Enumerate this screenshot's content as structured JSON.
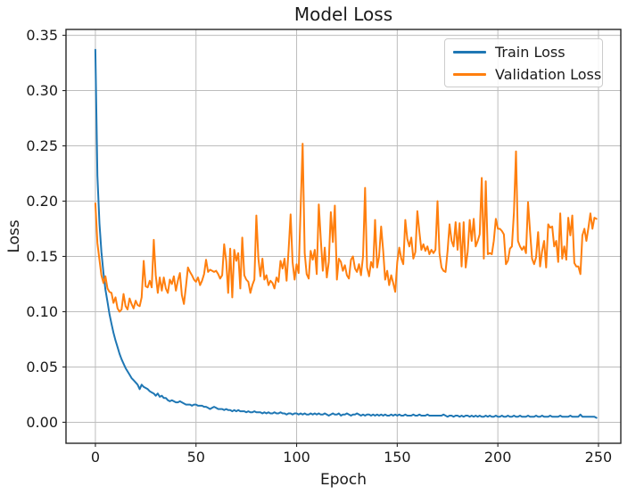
{
  "colors": {
    "background": "#ffffff",
    "grid": "#bdbdbd",
    "spine": "#262626",
    "tick_text": "#1a1a1a",
    "train": "#1f77b4",
    "validation": "#ff7f0e"
  },
  "chart_data": {
    "type": "line",
    "title": "Model Loss",
    "xlabel": "Epoch",
    "ylabel": "Loss",
    "grid": true,
    "legend_position": "upper right",
    "x_ticks": [
      0,
      50,
      100,
      150,
      200,
      250
    ],
    "y_ticks": [
      0.0,
      0.05,
      0.1,
      0.15,
      0.2,
      0.25,
      0.3,
      0.35
    ],
    "xlim": [
      -14.6,
      261.1
    ],
    "ylim": [
      -0.019,
      0.3553
    ],
    "x_start": 0,
    "x_step": 1,
    "series": [
      {
        "name": "Train Loss",
        "color": "#1f77b4",
        "values": [
          0.337,
          0.223,
          0.18,
          0.154,
          0.135,
          0.12,
          0.109,
          0.098,
          0.089,
          0.081,
          0.074,
          0.068,
          0.062,
          0.057,
          0.053,
          0.049,
          0.046,
          0.043,
          0.04,
          0.038,
          0.036,
          0.034,
          0.03,
          0.034,
          0.032,
          0.031,
          0.03,
          0.028,
          0.027,
          0.026,
          0.024,
          0.026,
          0.023,
          0.024,
          0.022,
          0.022,
          0.02,
          0.019,
          0.02,
          0.019,
          0.018,
          0.018,
          0.019,
          0.018,
          0.017,
          0.016,
          0.016,
          0.016,
          0.015,
          0.016,
          0.016,
          0.015,
          0.015,
          0.015,
          0.014,
          0.014,
          0.013,
          0.012,
          0.013,
          0.014,
          0.013,
          0.012,
          0.012,
          0.012,
          0.011,
          0.012,
          0.011,
          0.011,
          0.01,
          0.011,
          0.01,
          0.011,
          0.01,
          0.01,
          0.01,
          0.009,
          0.01,
          0.009,
          0.009,
          0.01,
          0.009,
          0.009,
          0.009,
          0.008,
          0.009,
          0.008,
          0.009,
          0.008,
          0.008,
          0.009,
          0.008,
          0.008,
          0.009,
          0.008,
          0.008,
          0.007,
          0.008,
          0.008,
          0.007,
          0.008,
          0.008,
          0.007,
          0.008,
          0.007,
          0.008,
          0.007,
          0.007,
          0.008,
          0.007,
          0.008,
          0.007,
          0.008,
          0.007,
          0.007,
          0.008,
          0.007,
          0.006,
          0.007,
          0.008,
          0.007,
          0.007,
          0.008,
          0.006,
          0.007,
          0.007,
          0.008,
          0.007,
          0.006,
          0.007,
          0.007,
          0.008,
          0.007,
          0.006,
          0.007,
          0.006,
          0.007,
          0.007,
          0.006,
          0.007,
          0.006,
          0.007,
          0.006,
          0.007,
          0.006,
          0.007,
          0.006,
          0.006,
          0.007,
          0.006,
          0.007,
          0.006,
          0.007,
          0.006,
          0.006,
          0.007,
          0.006,
          0.006,
          0.006,
          0.007,
          0.006,
          0.006,
          0.007,
          0.006,
          0.006,
          0.006,
          0.007,
          0.006,
          0.006,
          0.006,
          0.006,
          0.006,
          0.006,
          0.006,
          0.007,
          0.006,
          0.005,
          0.006,
          0.006,
          0.005,
          0.006,
          0.006,
          0.005,
          0.006,
          0.005,
          0.006,
          0.006,
          0.005,
          0.006,
          0.005,
          0.006,
          0.005,
          0.006,
          0.005,
          0.005,
          0.006,
          0.005,
          0.006,
          0.005,
          0.005,
          0.006,
          0.005,
          0.005,
          0.006,
          0.005,
          0.005,
          0.006,
          0.005,
          0.005,
          0.006,
          0.005,
          0.005,
          0.006,
          0.005,
          0.005,
          0.005,
          0.006,
          0.005,
          0.005,
          0.005,
          0.006,
          0.005,
          0.005,
          0.006,
          0.005,
          0.005,
          0.005,
          0.006,
          0.005,
          0.005,
          0.005,
          0.005,
          0.006,
          0.005,
          0.005,
          0.005,
          0.005,
          0.006,
          0.005,
          0.005,
          0.005,
          0.005,
          0.007,
          0.005,
          0.005,
          0.005,
          0.005,
          0.005,
          0.005,
          0.005,
          0.004
        ]
      },
      {
        "name": "Validation Loss",
        "color": "#ff7f0e",
        "values": [
          0.198,
          0.162,
          0.147,
          0.133,
          0.126,
          0.132,
          0.121,
          0.118,
          0.117,
          0.108,
          0.113,
          0.103,
          0.1,
          0.102,
          0.116,
          0.105,
          0.102,
          0.112,
          0.107,
          0.103,
          0.11,
          0.106,
          0.105,
          0.113,
          0.146,
          0.123,
          0.122,
          0.128,
          0.122,
          0.165,
          0.133,
          0.117,
          0.131,
          0.119,
          0.131,
          0.121,
          0.117,
          0.129,
          0.125,
          0.132,
          0.119,
          0.128,
          0.135,
          0.115,
          0.107,
          0.123,
          0.14,
          0.136,
          0.133,
          0.129,
          0.127,
          0.131,
          0.124,
          0.128,
          0.134,
          0.147,
          0.136,
          0.138,
          0.137,
          0.136,
          0.137,
          0.134,
          0.13,
          0.133,
          0.161,
          0.146,
          0.117,
          0.157,
          0.113,
          0.156,
          0.146,
          0.153,
          0.121,
          0.167,
          0.133,
          0.129,
          0.127,
          0.117,
          0.124,
          0.129,
          0.187,
          0.148,
          0.132,
          0.148,
          0.129,
          0.133,
          0.124,
          0.128,
          0.126,
          0.121,
          0.131,
          0.127,
          0.146,
          0.139,
          0.148,
          0.128,
          0.155,
          0.188,
          0.145,
          0.129,
          0.143,
          0.135,
          0.195,
          0.252,
          0.153,
          0.134,
          0.13,
          0.155,
          0.147,
          0.156,
          0.134,
          0.197,
          0.166,
          0.137,
          0.158,
          0.131,
          0.145,
          0.19,
          0.163,
          0.196,
          0.129,
          0.148,
          0.145,
          0.137,
          0.142,
          0.133,
          0.13,
          0.147,
          0.15,
          0.139,
          0.136,
          0.143,
          0.133,
          0.15,
          0.212,
          0.14,
          0.132,
          0.145,
          0.14,
          0.183,
          0.14,
          0.15,
          0.177,
          0.155,
          0.129,
          0.137,
          0.124,
          0.133,
          0.126,
          0.118,
          0.145,
          0.158,
          0.148,
          0.143,
          0.183,
          0.166,
          0.159,
          0.167,
          0.148,
          0.154,
          0.191,
          0.172,
          0.156,
          0.161,
          0.155,
          0.159,
          0.152,
          0.156,
          0.153,
          0.156,
          0.2,
          0.153,
          0.14,
          0.137,
          0.136,
          0.155,
          0.179,
          0.164,
          0.159,
          0.181,
          0.156,
          0.18,
          0.141,
          0.181,
          0.14,
          0.154,
          0.183,
          0.164,
          0.184,
          0.159,
          0.164,
          0.17,
          0.221,
          0.148,
          0.218,
          0.152,
          0.153,
          0.152,
          0.164,
          0.184,
          0.175,
          0.175,
          0.173,
          0.17,
          0.143,
          0.146,
          0.157,
          0.159,
          0.19,
          0.245,
          0.164,
          0.159,
          0.156,
          0.159,
          0.153,
          0.199,
          0.172,
          0.148,
          0.143,
          0.149,
          0.172,
          0.141,
          0.155,
          0.164,
          0.14,
          0.179,
          0.176,
          0.177,
          0.159,
          0.164,
          0.145,
          0.189,
          0.148,
          0.159,
          0.147,
          0.185,
          0.169,
          0.187,
          0.144,
          0.141,
          0.141,
          0.134,
          0.169,
          0.175,
          0.164,
          0.176,
          0.189,
          0.175,
          0.185,
          0.184
        ]
      }
    ]
  }
}
